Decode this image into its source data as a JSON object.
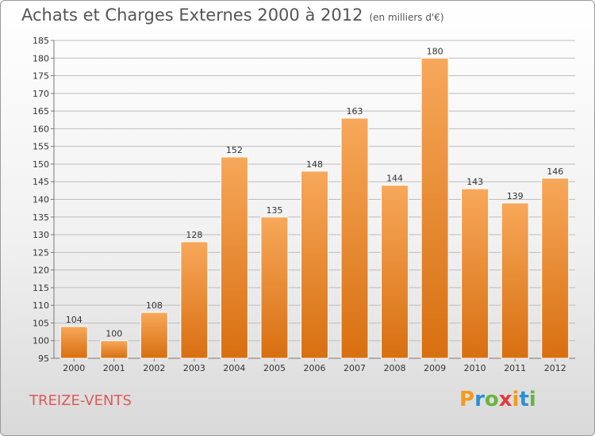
{
  "title": "Achats et Charges Externes 2000 à 2012",
  "unit": "(en milliers d'€)",
  "commune": "TREIZE-VENTS",
  "logo": {
    "text": "Proxiti",
    "colors": [
      "#f39a1e",
      "#2a8fd6",
      "#6bb43f",
      "#e23b3b",
      "#f39a1e",
      "#2a8fd6",
      "#6bb43f"
    ]
  },
  "colors": {
    "bar": "#f28c28",
    "bar_light": "#f7a85a",
    "bar_dark": "#d86f10",
    "commune_text": "#e05a5a"
  },
  "chart_data": {
    "type": "bar",
    "categories": [
      "2000",
      "2001",
      "2002",
      "2003",
      "2004",
      "2005",
      "2006",
      "2007",
      "2008",
      "2009",
      "2010",
      "2011",
      "2012"
    ],
    "values": [
      104,
      100,
      108,
      128,
      152,
      135,
      148,
      163,
      144,
      180,
      143,
      139,
      146
    ],
    "title": "Achats et Charges Externes 2000 à 2012",
    "xlabel": "",
    "ylabel": "",
    "ylim": [
      95,
      185
    ],
    "yticks": [
      95,
      100,
      105,
      110,
      115,
      120,
      125,
      130,
      135,
      140,
      145,
      150,
      155,
      160,
      165,
      170,
      175,
      180,
      185
    ],
    "grid": true,
    "data_labels": true
  }
}
